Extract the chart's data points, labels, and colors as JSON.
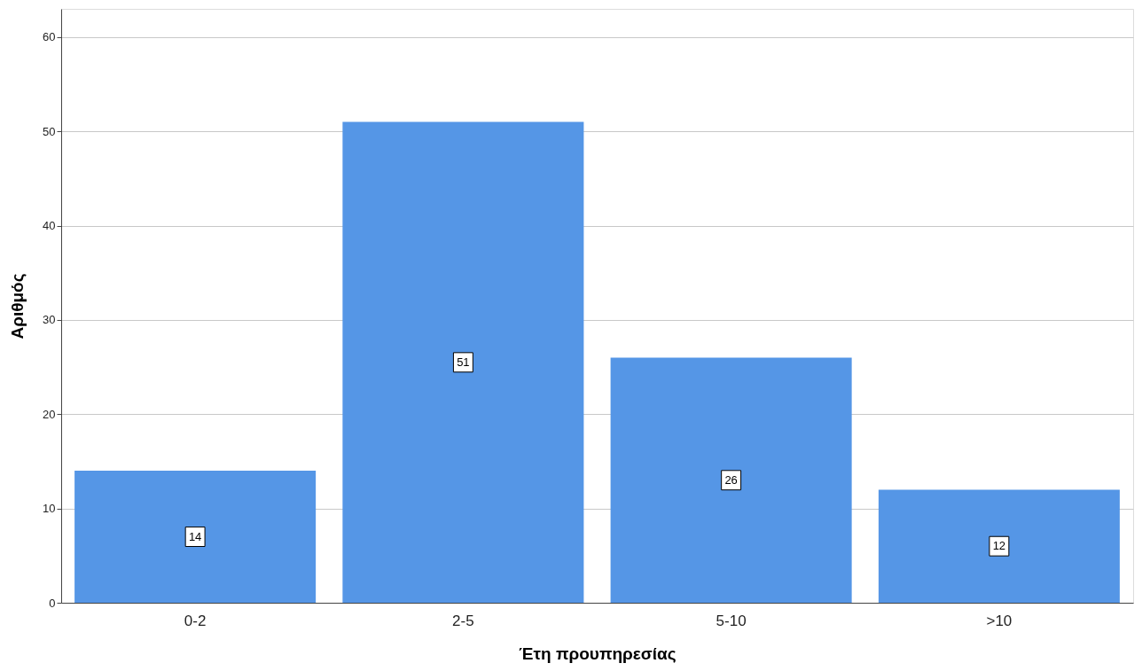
{
  "chart_data": {
    "type": "bar",
    "xlabel": "Έτη προυπηρεσίας",
    "ylabel": "Αριθμός",
    "categories": [
      "0-2",
      "2-5",
      "5-10",
      ">10"
    ],
    "values": [
      14,
      51,
      26,
      12
    ],
    "color": "#5596e6",
    "ylim": [
      0,
      63
    ],
    "yticks": [
      0,
      10,
      20,
      30,
      40,
      50,
      60
    ],
    "grid": "y",
    "data_labels": true
  }
}
